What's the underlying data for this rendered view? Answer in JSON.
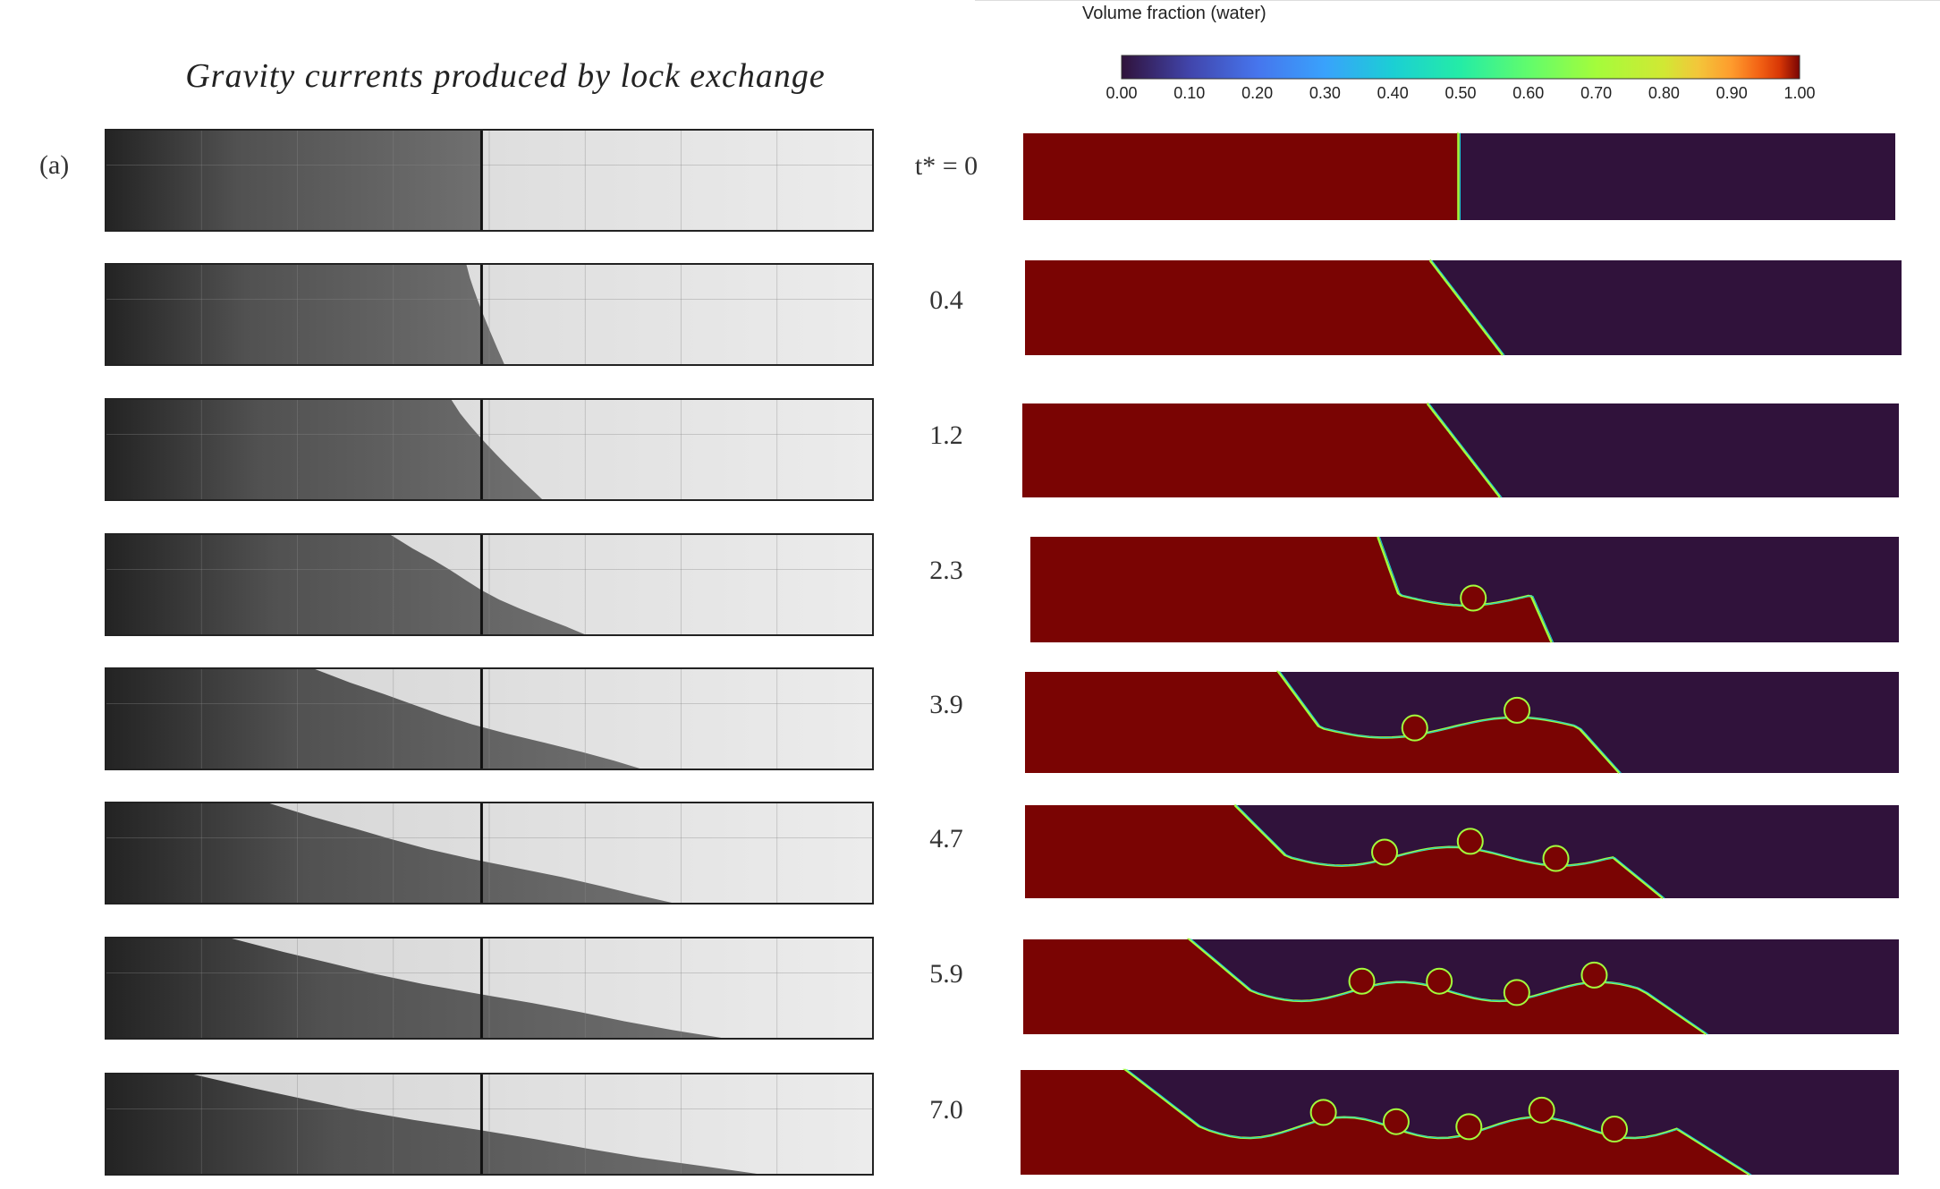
{
  "figure": {
    "title": "Gravity currents produced by lock exchange",
    "panel_label": "(a)"
  },
  "colorbar": {
    "title": "Volume fraction (water)",
    "ticks": [
      "0.00",
      "0.10",
      "0.20",
      "0.30",
      "0.40",
      "0.50",
      "0.60",
      "0.70",
      "0.80",
      "0.90",
      "1.00"
    ],
    "colormap": "turbo",
    "colors": {
      "water": "#7a0403",
      "air": "#30123b",
      "interface": "#a3fd3c"
    }
  },
  "frames": [
    {
      "label": "t* = 0"
    },
    {
      "label": "0.4"
    },
    {
      "label": "1.2"
    },
    {
      "label": "2.3"
    },
    {
      "label": "3.9"
    },
    {
      "label": "4.7"
    },
    {
      "label": "5.9"
    },
    {
      "label": "7.0"
    }
  ]
}
